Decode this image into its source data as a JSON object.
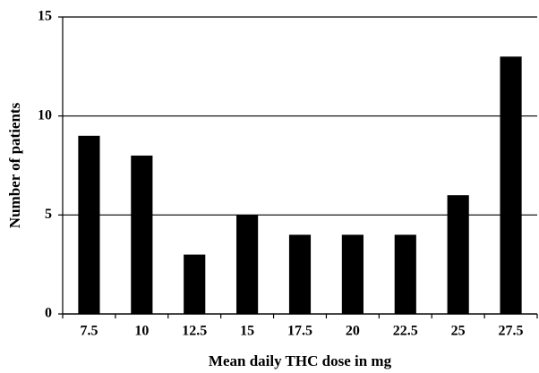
{
  "chart_data": {
    "type": "bar",
    "x_label": "Mean daily THC dose in mg",
    "y_label": "Number of patients",
    "categories": [
      "7.5",
      "10",
      "12.5",
      "15",
      "17.5",
      "20",
      "22.5",
      "25",
      "27.5"
    ],
    "values": [
      9,
      8,
      3,
      5,
      4,
      4,
      4,
      6,
      13
    ],
    "color": "#000000",
    "ylim": [
      0,
      15
    ],
    "yticks": [
      0,
      5,
      10,
      15
    ],
    "grid": true
  }
}
